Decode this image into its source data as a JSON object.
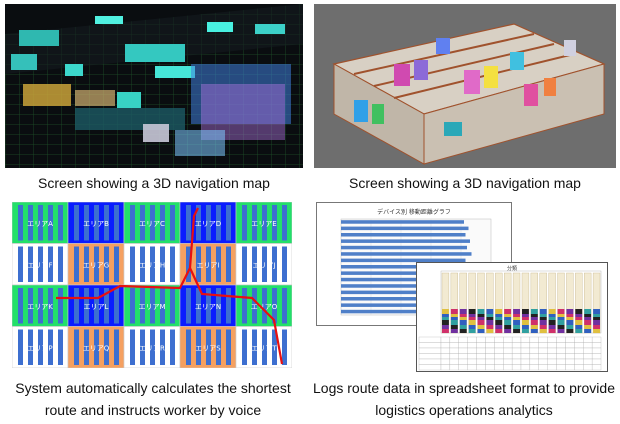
{
  "panels": [
    {
      "id": "tl",
      "caption_lines": [
        "Screen showing a 3D navigation map"
      ]
    },
    {
      "id": "tr",
      "caption_lines": [
        "Screen showing a 3D navigation map"
      ]
    },
    {
      "id": "bl",
      "caption_lines": [
        "System automatically calculates the shortest",
        "route and instructs worker by voice"
      ]
    },
    {
      "id": "br",
      "caption_lines": [
        "Logs route data in spreadsheet format to provide",
        "logistics operations analytics"
      ]
    }
  ],
  "route_map": {
    "area_labels": [
      "エリアA",
      "エリアB",
      "エリアC",
      "エリアD",
      "エリアE",
      "エリアF",
      "エリアG",
      "エリアH",
      "エリアI",
      "エリアJ",
      "エリアK",
      "エリアL",
      "エリアM",
      "エリアN",
      "エリアO",
      "エリアP",
      "エリアQ",
      "エリアR",
      "エリアS",
      "エリアT"
    ],
    "colors": {
      "green": "#22e06a",
      "blue": "#0a1cff",
      "orange": "#f5a060",
      "white": "#ffffff",
      "rack": "#3d6fd0",
      "route": "#e81010"
    }
  },
  "bar_sheet": {
    "title": "デバイス別 移動距離グラフ",
    "values": [
      0.82,
      0.85,
      0.83,
      0.86,
      0.84,
      0.87,
      0.83,
      0.85,
      0.86,
      0.84,
      0.82,
      0.85,
      0.86,
      0.83,
      0.84
    ],
    "colors": {
      "bar": "#4f7fc8"
    }
  },
  "stack_sheet": {
    "title": "分類",
    "columns": 18,
    "colors": {
      "base": "#f2ead2",
      "pink": "#d0306a",
      "purple": "#7030a0",
      "dark": "#222222",
      "teal": "#30a0a0",
      "blue": "#3060c0",
      "yellow": "#e0c040"
    }
  }
}
